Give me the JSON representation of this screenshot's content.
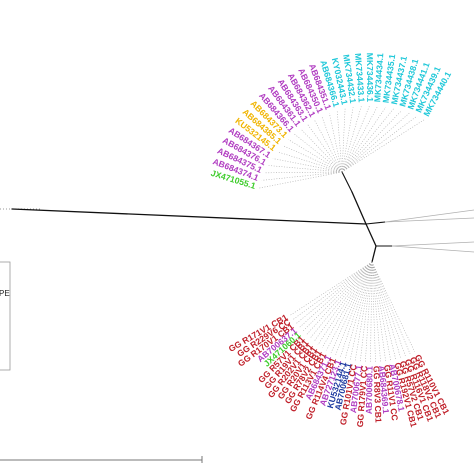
{
  "colors": {
    "cyan": "#1fc8d9",
    "magenta": "#b03cc1",
    "orange": "#f0b400",
    "green": "#3dcc2a",
    "red": "#c0202a",
    "navy": "#1e3aa0",
    "branch": "#111111",
    "guide": "#a8a8a8"
  },
  "legend": {
    "text": "PE"
  },
  "groups": [
    {
      "name": "upper",
      "labels": [
        {
          "text": "JX471055.1",
          "color": "green"
        },
        {
          "text": "AB684374.1",
          "color": "magenta"
        },
        {
          "text": "AB684375.1",
          "color": "magenta"
        },
        {
          "text": "AB684376.1",
          "color": "magenta"
        },
        {
          "text": "AB684367.1",
          "color": "magenta"
        },
        {
          "text": "KU532145.1",
          "color": "orange"
        },
        {
          "text": "AB684385.1",
          "color": "orange"
        },
        {
          "text": "AB684373.1",
          "color": "orange"
        },
        {
          "text": "AB684366.1",
          "color": "magenta"
        },
        {
          "text": "AB684361.1",
          "color": "magenta"
        },
        {
          "text": "AB684363.1",
          "color": "magenta"
        },
        {
          "text": "AB684362.1",
          "color": "magenta"
        },
        {
          "text": "AB684350.1",
          "color": "magenta"
        },
        {
          "text": "AB684351.1",
          "color": "magenta"
        },
        {
          "text": "AB684366.1",
          "color": "cyan"
        },
        {
          "text": "KY032443.1",
          "color": "cyan"
        },
        {
          "text": "MK734432.1",
          "color": "cyan"
        },
        {
          "text": "MK734433.1",
          "color": "cyan"
        },
        {
          "text": "MK734436.1",
          "color": "cyan"
        },
        {
          "text": "MK734434.1",
          "color": "cyan"
        },
        {
          "text": "MK734435.1",
          "color": "cyan"
        },
        {
          "text": "MK734437.1",
          "color": "cyan"
        },
        {
          "text": "MK734438.1",
          "color": "cyan"
        },
        {
          "text": "MK734441.1",
          "color": "cyan"
        },
        {
          "text": "MK734439.1",
          "color": "cyan"
        },
        {
          "text": "MK734440.1",
          "color": "cyan"
        }
      ]
    },
    {
      "name": "lower",
      "labels": [
        {
          "text": "GG R171V1 CB1",
          "color": "red"
        },
        {
          "text": "GG R229V6 CC",
          "color": "red"
        },
        {
          "text": "GG R170V1 CB1",
          "color": "red"
        },
        {
          "text": "AB700637.1",
          "color": "magenta"
        },
        {
          "text": "JX471060.1",
          "color": "green"
        },
        {
          "text": "GG R57V1 CB1",
          "color": "red"
        },
        {
          "text": "GG R19V1 CB1",
          "color": "red"
        },
        {
          "text": "GG R202V1 CB1",
          "color": "red"
        },
        {
          "text": "GG R20V1 CB1",
          "color": "red"
        },
        {
          "text": "GG R78V2 CB1",
          "color": "red"
        },
        {
          "text": "GG R113V1 CB1",
          "color": "red"
        },
        {
          "text": "AB684371.1",
          "color": "magenta"
        },
        {
          "text": "GG R114V4 CB1",
          "color": "red"
        },
        {
          "text": "AB727123.1",
          "color": "magenta"
        },
        {
          "text": "KU532144.1",
          "color": "navy"
        },
        {
          "text": "AB700681.1",
          "color": "navy"
        },
        {
          "text": "GG R101V1 CC",
          "color": "red"
        },
        {
          "text": "AB700677.1",
          "color": "magenta"
        },
        {
          "text": "GG R179V1 CC",
          "color": "red"
        },
        {
          "text": "AB700680.1",
          "color": "magenta"
        },
        {
          "text": "GG R8V3 CB1",
          "color": "red"
        },
        {
          "text": "AB684369.1",
          "color": "magenta"
        },
        {
          "text": "GG R11V1 CC",
          "color": "red"
        },
        {
          "text": "AB700678.1",
          "color": "magenta"
        },
        {
          "text": "GG R192V1 CB1",
          "color": "red"
        },
        {
          "text": "GG R57V2 CB1",
          "color": "red"
        },
        {
          "text": "GG R116V1 CB1",
          "color": "red"
        },
        {
          "text": "GG R118V2 CB1",
          "color": "red"
        },
        {
          "text": "GG R110V1 CB1",
          "color": "red"
        }
      ]
    }
  ]
}
